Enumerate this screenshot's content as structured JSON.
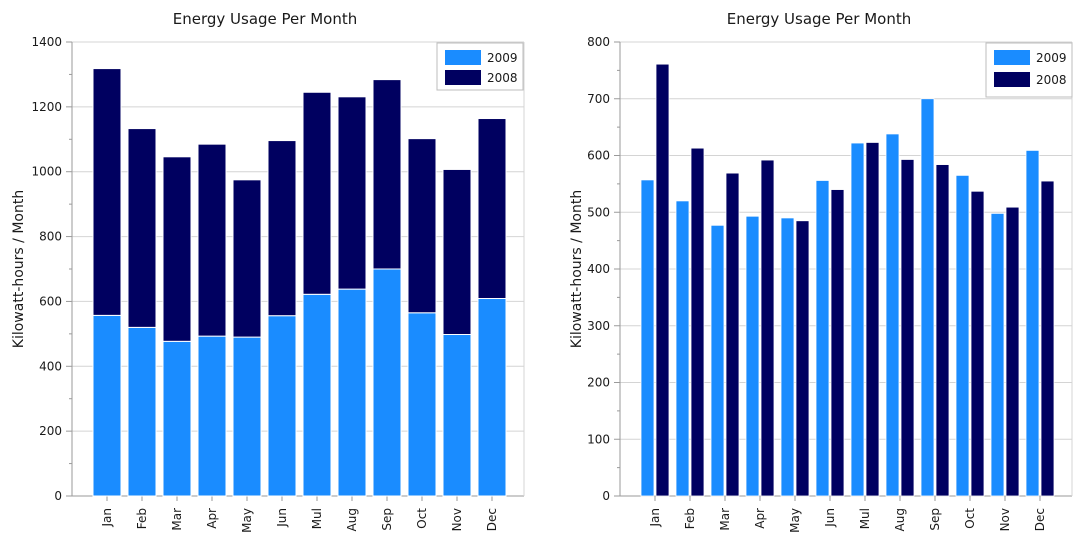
{
  "colors": {
    "s2009": "#1a8cff",
    "s2008": "#000060",
    "grid": "#d4d4d4",
    "axis": "#9a9a9a"
  },
  "chart_data": [
    {
      "type": "bar",
      "stacked": true,
      "title": "Energy Usage Per Month",
      "xlabel": "",
      "ylabel": "Kilowatt-hours / Month",
      "ylim": [
        0,
        1400
      ],
      "yticks": [
        0,
        200,
        400,
        600,
        800,
        1000,
        1200,
        1400
      ],
      "yticks_text": [
        "0",
        "200",
        "400",
        "600",
        "800",
        "1000",
        "1200",
        "1400"
      ],
      "grid": true,
      "legend": "top-right",
      "categories": [
        "Jan",
        "Feb",
        "Mar",
        "Apr",
        "May",
        "Jun",
        "Mul",
        "Aug",
        "Sep",
        "Oct",
        "Nov",
        "Dec"
      ],
      "series": [
        {
          "name": "2009",
          "values": [
            557,
            520,
            477,
            493,
            490,
            556,
            622,
            638,
            700,
            565,
            498,
            609
          ]
        },
        {
          "name": "2008",
          "values": [
            761,
            613,
            569,
            592,
            485,
            540,
            623,
            593,
            584,
            537,
            509,
            555
          ]
        }
      ]
    },
    {
      "type": "bar",
      "stacked": false,
      "title": "Energy Usage Per Month",
      "xlabel": "",
      "ylabel": "Kilowatt-hours / Month",
      "ylim": [
        0,
        800
      ],
      "yticks": [
        0,
        100,
        200,
        300,
        400,
        500,
        600,
        700,
        800
      ],
      "yticks_text": [
        "0",
        "100",
        "200",
        "300",
        "400",
        "500",
        "600",
        "700",
        "800"
      ],
      "grid": true,
      "legend": "top-right",
      "categories": [
        "Jan",
        "Feb",
        "Mar",
        "Apr",
        "May",
        "Jun",
        "Mul",
        "Aug",
        "Sep",
        "Oct",
        "Nov",
        "Dec"
      ],
      "series": [
        {
          "name": "2009",
          "values": [
            557,
            520,
            477,
            493,
            490,
            556,
            622,
            638,
            700,
            565,
            498,
            609
          ]
        },
        {
          "name": "2008",
          "values": [
            761,
            613,
            569,
            592,
            485,
            540,
            623,
            593,
            584,
            537,
            509,
            555
          ]
        }
      ]
    }
  ]
}
